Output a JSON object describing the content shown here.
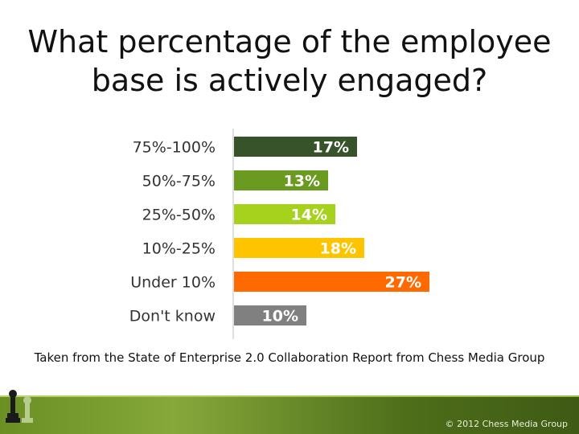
{
  "slide": {
    "title_line1": "What percentage of the employee",
    "title_line2": "base is actively engaged?",
    "source": "Taken from the State of Enterprise 2.0 Collaboration Report from Chess Media Group",
    "copyright": "© 2012 Chess Media Group"
  },
  "icons": {
    "footer": "chess-pieces-icon"
  },
  "chart_data": {
    "type": "bar",
    "orientation": "horizontal",
    "title": "",
    "xlabel": "",
    "ylabel": "",
    "categories": [
      "75%-100%",
      "50%-75%",
      "25%-50%",
      "10%-25%",
      "Under 10%",
      "Don't know"
    ],
    "values": [
      17,
      13,
      14,
      18,
      27,
      10
    ],
    "value_labels": [
      "17%",
      "13%",
      "14%",
      "18%",
      "27%",
      "10%"
    ],
    "colors": [
      "#36532a",
      "#6a9a1f",
      "#a6d11c",
      "#ffc400",
      "#ff6a00",
      "#808080"
    ],
    "xlim": [
      0,
      30
    ],
    "grid": false,
    "legend": "none"
  }
}
